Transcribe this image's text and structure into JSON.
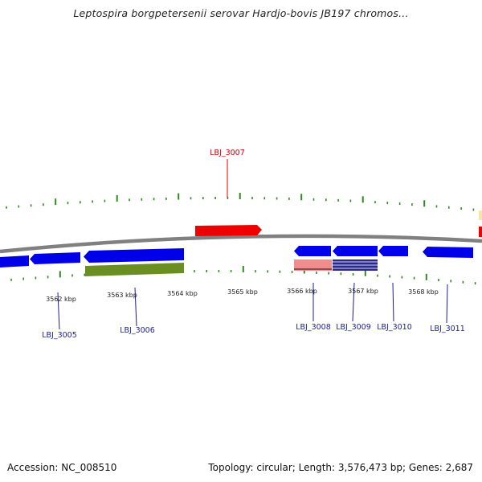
{
  "title": "Leptospira borgpetersenii serovar Hardjo-bovis JB197 chromos...",
  "footer": {
    "accession": "Accession: NC_008510",
    "summary": "Topology: circular; Length: 3,576,473 bp; Genes: 2,687"
  },
  "colors": {
    "backbone": "#808080",
    "tick": "#2d8a1e",
    "gene_forward": "#ee0000",
    "gene_reverse": "#0000e8",
    "gene_label_forward": "#cc0000",
    "gene_label_reverse": "#1a1aa8",
    "feature_olive": "#6b8e23",
    "feature_pink": "#f08c8c",
    "feature_navy": "#2a2a8a"
  },
  "scale_labels": [
    "3562 kbp",
    "3563 kbp",
    "3564 kbp",
    "3565 kbp",
    "3566 kbp",
    "3567 kbp",
    "3568 kbp"
  ],
  "genes": [
    {
      "id": "LBJ_3005",
      "strand": "reverse"
    },
    {
      "id": "LBJ_3006",
      "strand": "reverse"
    },
    {
      "id": "LBJ_3007",
      "strand": "forward"
    },
    {
      "id": "LBJ_3008",
      "strand": "reverse"
    },
    {
      "id": "LBJ_3009",
      "strand": "reverse"
    },
    {
      "id": "LBJ_3010",
      "strand": "reverse"
    },
    {
      "id": "LBJ_3011",
      "strand": "reverse"
    }
  ]
}
